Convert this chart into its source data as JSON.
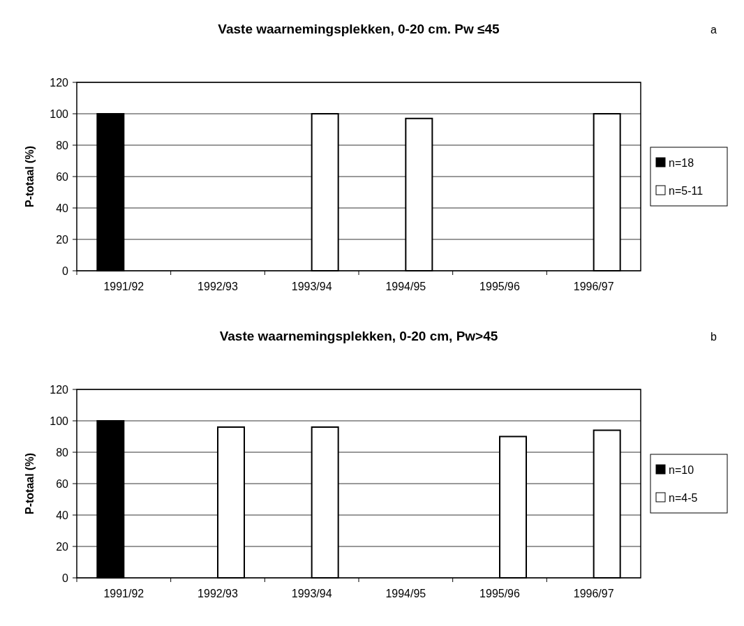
{
  "chart_data": [
    {
      "type": "bar",
      "title": "Vaste waarnemingsplekken, 0-20 cm. Pw ≤45",
      "annotations": [
        "a"
      ],
      "ylabel": "P-totaal (%)",
      "categories": [
        "1991/92",
        "1992/93",
        "1993/94",
        "1994/95",
        "1995/96",
        "1996/97"
      ],
      "series": [
        {
          "name": "n=18",
          "color": "#000000",
          "values": [
            100,
            null,
            null,
            null,
            null,
            null
          ]
        },
        {
          "name": "n=5-11",
          "color": "#ffffff",
          "values": [
            null,
            null,
            100,
            97,
            null,
            100
          ]
        }
      ],
      "ylim": [
        0,
        120
      ],
      "yticks": [
        0,
        20,
        40,
        60,
        80,
        100,
        120
      ],
      "grid": "y",
      "legend": "right"
    },
    {
      "type": "bar",
      "title": "Vaste waarnemingsplekken, 0-20 cm, Pw>45",
      "annotations": [
        "b"
      ],
      "ylabel": "P-totaal (%)",
      "categories": [
        "1991/92",
        "1992/93",
        "1993/94",
        "1994/95",
        "1995/96",
        "1996/97"
      ],
      "series": [
        {
          "name": "n=10",
          "color": "#000000",
          "values": [
            100,
            null,
            null,
            null,
            null,
            null
          ]
        },
        {
          "name": "n=4-5",
          "color": "#ffffff",
          "values": [
            null,
            96,
            96,
            null,
            90,
            94
          ]
        }
      ],
      "ylim": [
        0,
        120
      ],
      "yticks": [
        0,
        20,
        40,
        60,
        80,
        100,
        120
      ],
      "grid": "y",
      "legend": "right"
    }
  ]
}
